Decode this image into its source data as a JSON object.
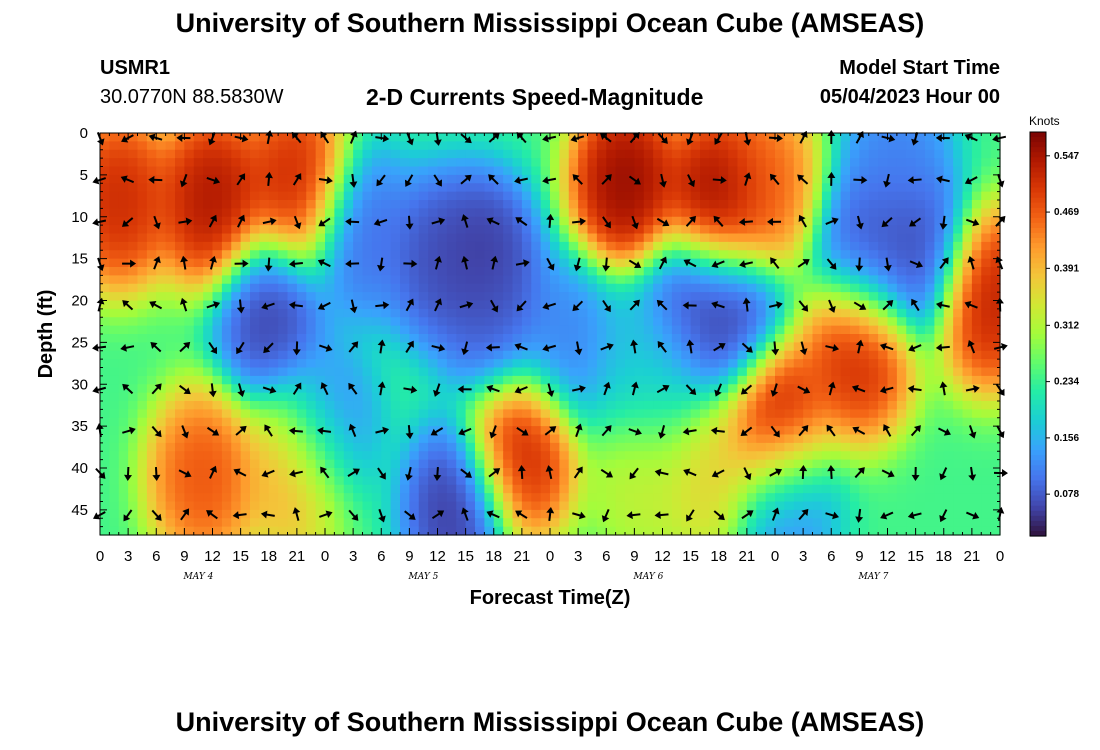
{
  "header": {
    "title": "University of Southern Mississippi Ocean Cube (AMSEAS)",
    "station": "USMR1",
    "coordinates": "30.0770N  88.5830W",
    "subtitle": "2-D Currents Speed-Magnitude",
    "start_label": "Model Start Time",
    "start_value": "05/04/2023 Hour 00"
  },
  "footer": {
    "title": "University of Southern Mississippi Ocean Cube (AMSEAS)"
  },
  "chart_data": {
    "type": "heatmap",
    "xlabel": "Forecast Time(Z)",
    "ylabel": "Depth (ft)",
    "x_ticks": [
      "0",
      "3",
      "6",
      "9",
      "12",
      "15",
      "18",
      "21",
      "0",
      "3",
      "6",
      "9",
      "12",
      "15",
      "18",
      "21",
      "0",
      "3",
      "6",
      "9",
      "12",
      "15",
      "18",
      "21",
      "0",
      "3",
      "6",
      "9",
      "12",
      "15",
      "18",
      "21",
      "0"
    ],
    "x_range_hours": [
      0,
      96
    ],
    "day_labels": [
      "MAY 4",
      "MAY 5",
      "MAY 6",
      "MAY 7"
    ],
    "y_ticks": [
      0,
      5,
      10,
      15,
      20,
      25,
      30,
      35,
      40,
      45
    ],
    "y_range": [
      0,
      48
    ],
    "y_inverted": true,
    "colorbar": {
      "unit": "Knots",
      "ticks": [
        0.547,
        0.469,
        0.391,
        0.312,
        0.234,
        0.156,
        0.078
      ],
      "range": [
        0.02,
        0.58
      ],
      "palette": [
        "#30123b",
        "#4145ab",
        "#4675ed",
        "#39a2fc",
        "#1bcfd4",
        "#24eca6",
        "#61fc6c",
        "#a4fc3b",
        "#d1e834",
        "#f3c63a",
        "#fe9b2d",
        "#f36315",
        "#d93806",
        "#b11901",
        "#7a0403"
      ]
    },
    "speed_blobs": [
      {
        "t": 2,
        "d": 8,
        "v": 0.55
      },
      {
        "t": 12,
        "d": 8,
        "v": 0.58
      },
      {
        "t": 21,
        "d": 6,
        "v": 0.55
      },
      {
        "t": 11,
        "d": 41,
        "v": 0.5
      },
      {
        "t": 21,
        "d": 40,
        "v": 0.44
      },
      {
        "t": 45,
        "d": 38,
        "v": 0.55
      },
      {
        "t": 56,
        "d": 6,
        "v": 0.6
      },
      {
        "t": 66,
        "d": 8,
        "v": 0.6
      },
      {
        "t": 71,
        "d": 6,
        "v": 0.48
      },
      {
        "t": 58,
        "d": 40,
        "v": 0.34
      },
      {
        "t": 65,
        "d": 40,
        "v": 0.38
      },
      {
        "t": 72,
        "d": 35,
        "v": 0.58
      },
      {
        "t": 81,
        "d": 26,
        "v": 0.55
      },
      {
        "t": 95,
        "d": 20,
        "v": 0.56
      },
      {
        "t": 28,
        "d": 12,
        "v": 0.08
      },
      {
        "t": 36,
        "d": 15,
        "v": 0.05
      },
      {
        "t": 41,
        "d": 15,
        "v": 0.03
      },
      {
        "t": 42,
        "d": 22,
        "v": 0.07
      },
      {
        "t": 18,
        "d": 22,
        "v": 0.04
      },
      {
        "t": 24,
        "d": 35,
        "v": 0.1
      },
      {
        "t": 38,
        "d": 45,
        "v": 0.03
      },
      {
        "t": 63,
        "d": 22,
        "v": 0.05
      },
      {
        "t": 67,
        "d": 22,
        "v": 0.04
      },
      {
        "t": 82,
        "d": 14,
        "v": 0.06
      },
      {
        "t": 87,
        "d": 14,
        "v": 0.05
      },
      {
        "t": 85,
        "d": 3,
        "v": 0.1
      },
      {
        "t": 73,
        "d": 44,
        "v": 0.1
      },
      {
        "t": 50,
        "d": 25,
        "v": 0.1
      },
      {
        "t": 57,
        "d": 28,
        "v": 0.16
      },
      {
        "t": 60,
        "d": 30,
        "v": 0.2
      }
    ]
  }
}
